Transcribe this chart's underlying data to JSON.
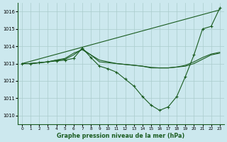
{
  "bg_color": "#cce8ee",
  "grid_color": "#aacccc",
  "line_color": "#1a5c20",
  "xlabel": "Graphe pression niveau de la mer (hPa)",
  "xlim": [
    -0.5,
    23.5
  ],
  "ylim": [
    1009.5,
    1016.5
  ],
  "yticks": [
    1010,
    1011,
    1012,
    1013,
    1014,
    1015,
    1016
  ],
  "xticks": [
    0,
    1,
    2,
    3,
    4,
    5,
    6,
    7,
    8,
    9,
    10,
    11,
    12,
    13,
    14,
    15,
    16,
    17,
    18,
    19,
    20,
    21,
    22,
    23
  ],
  "line1_x": [
    0,
    1,
    2,
    3,
    4,
    5,
    6,
    7,
    8,
    9,
    10,
    11,
    12,
    13,
    14,
    15,
    16,
    17,
    18,
    19,
    20,
    21,
    22,
    23
  ],
  "line1_y": [
    1013.0,
    1013.0,
    1013.05,
    1013.1,
    1013.15,
    1013.2,
    1013.3,
    1013.9,
    1013.35,
    1012.85,
    1012.7,
    1012.5,
    1012.1,
    1011.7,
    1011.1,
    1010.6,
    1010.3,
    1010.5,
    1011.1,
    1012.25,
    1013.5,
    1015.0,
    1015.15,
    1016.2
  ],
  "line2_x": [
    0,
    1,
    2,
    3,
    4,
    5,
    6,
    7,
    8,
    9,
    10,
    11,
    12,
    13,
    14,
    15,
    16,
    17,
    18,
    19,
    20,
    21,
    22,
    23
  ],
  "line2_y": [
    1013.0,
    1013.0,
    1013.05,
    1013.1,
    1013.2,
    1013.3,
    1013.6,
    1013.8,
    1013.5,
    1013.2,
    1013.1,
    1013.0,
    1012.95,
    1012.9,
    1012.85,
    1012.75,
    1012.75,
    1012.75,
    1012.8,
    1012.9,
    1013.1,
    1013.35,
    1013.55,
    1013.65
  ],
  "line3_x": [
    0,
    23
  ],
  "line3_y": [
    1013.0,
    1016.1
  ],
  "line4_x": [
    0,
    1,
    2,
    3,
    4,
    5,
    6,
    7,
    8,
    9,
    10,
    11,
    12,
    13,
    14,
    15,
    16,
    17,
    18,
    19,
    20,
    21,
    22,
    23
  ],
  "line4_y": [
    1013.0,
    1013.0,
    1013.05,
    1013.1,
    1013.2,
    1013.25,
    1013.5,
    1013.85,
    1013.5,
    1013.1,
    1013.05,
    1013.0,
    1012.95,
    1012.9,
    1012.85,
    1012.78,
    1012.75,
    1012.75,
    1012.8,
    1012.85,
    1013.0,
    1013.25,
    1013.5,
    1013.6
  ]
}
